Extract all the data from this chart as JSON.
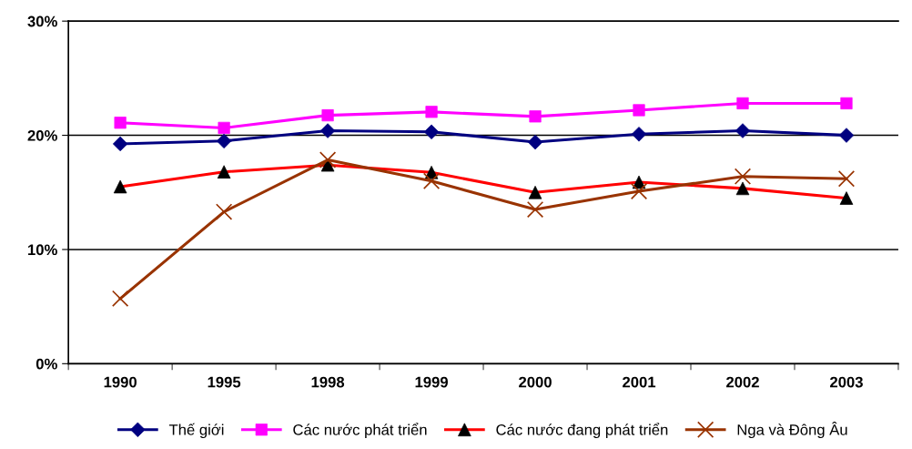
{
  "chart_data": {
    "type": "line",
    "categories": [
      "1990",
      "1995",
      "1998",
      "1999",
      "2000",
      "2001",
      "2002",
      "2003"
    ],
    "ylim": [
      0,
      30
    ],
    "yticks": [
      {
        "value": 0,
        "label": "0%"
      },
      {
        "value": 10,
        "label": "10%"
      },
      {
        "value": 20,
        "label": "20%"
      },
      {
        "value": 30,
        "label": "30%"
      }
    ],
    "grid": "y",
    "legend": "bottom",
    "line_style": "solid",
    "series": [
      {
        "name": "Thế giới",
        "color": "#000080",
        "marker": "diamond",
        "values": [
          19.25,
          19.5,
          20.4,
          20.3,
          19.4,
          20.1,
          20.4,
          20.0
        ]
      },
      {
        "name": "Các nước phát triển",
        "color": "#ff00ff",
        "marker": "square",
        "values": [
          21.1,
          20.65,
          21.75,
          22.05,
          21.65,
          22.2,
          22.8,
          22.8
        ]
      },
      {
        "name": "Các nước đang phát triển",
        "color": "#ff0000",
        "marker": "triangle",
        "values": [
          15.5,
          16.8,
          17.4,
          16.75,
          15.0,
          15.9,
          15.35,
          14.5
        ]
      },
      {
        "name": "Nga và Đông Âu",
        "color": "#993300",
        "marker": "cross",
        "values": [
          5.7,
          13.3,
          17.85,
          16.0,
          13.5,
          15.1,
          16.4,
          16.2
        ]
      }
    ]
  }
}
